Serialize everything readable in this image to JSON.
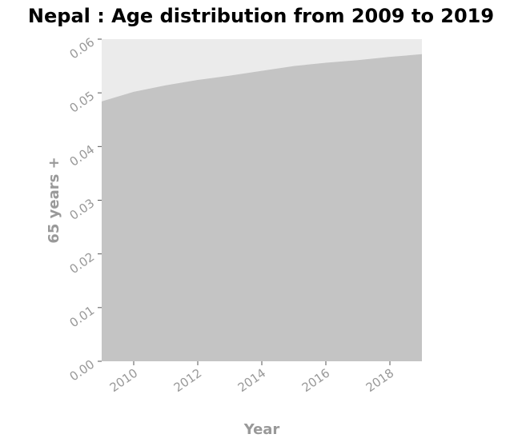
{
  "chart_data": {
    "type": "area",
    "title": "Nepal : Age distribution from 2009 to 2019",
    "xlabel": "Year",
    "ylabel": "65 years +",
    "x": [
      2009,
      2010,
      2011,
      2012,
      2013,
      2014,
      2015,
      2016,
      2017,
      2018,
      2019
    ],
    "series": [
      {
        "values": [
          0.0484,
          0.0502,
          0.0514,
          0.0524,
          0.0532,
          0.0541,
          0.055,
          0.0556,
          0.0561,
          0.0567,
          0.0572
        ]
      }
    ],
    "xlim": [
      2009,
      2019
    ],
    "ylim": [
      0,
      0.06
    ],
    "xticks": [
      2010,
      2012,
      2014,
      2016,
      2018
    ],
    "xtick_labels": [
      "2010",
      "2012",
      "2014",
      "2016",
      "2018"
    ],
    "yticks": [
      0,
      0.01,
      0.02,
      0.03,
      0.04,
      0.05,
      0.06
    ],
    "ytick_labels": [
      "0.00",
      "0.01",
      "0.02",
      "0.03",
      "0.04",
      "0.05",
      "0.06"
    ],
    "grid": false,
    "colors": {
      "plot_bg": "#ebebeb",
      "area_fill": "#c4c4c4",
      "tick_text": "#999999"
    }
  }
}
